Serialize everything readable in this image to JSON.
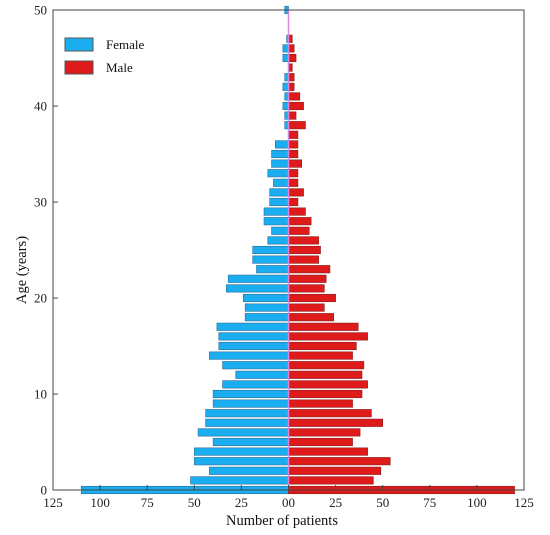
{
  "chart_data": {
    "type": "bar",
    "orientation": "horizontal-population-pyramid",
    "xlabel": "Number of patients",
    "ylabel": "Age (years)",
    "xlim": [
      -125,
      125
    ],
    "ylim": [
      0,
      50
    ],
    "xticks": [
      -125,
      -100,
      -75,
      -50,
      -25,
      0,
      25,
      50,
      75,
      100,
      125
    ],
    "xtick_labels": [
      "125",
      "100",
      "75",
      "50",
      "25",
      "00",
      "25",
      "50",
      "75",
      "100",
      "125"
    ],
    "yticks": [
      0,
      10,
      20,
      30,
      40,
      50
    ],
    "legend_position": "top-left",
    "ages": [
      0,
      1,
      2,
      3,
      4,
      5,
      6,
      7,
      8,
      9,
      10,
      11,
      12,
      13,
      14,
      15,
      16,
      17,
      18,
      19,
      20,
      21,
      22,
      23,
      24,
      25,
      26,
      27,
      28,
      29,
      30,
      31,
      32,
      33,
      34,
      35,
      36,
      37,
      38,
      39,
      40,
      41,
      42,
      43,
      44,
      45,
      46,
      47,
      48,
      49,
      50
    ],
    "series": [
      {
        "name": "Female",
        "color": "#1aaef0",
        "values": [
          110,
          52,
          42,
          50,
          50,
          40,
          48,
          44,
          44,
          40,
          40,
          35,
          28,
          35,
          42,
          37,
          37,
          38,
          23,
          23,
          24,
          33,
          32,
          17,
          19,
          19,
          11,
          9,
          13,
          13,
          10,
          10,
          8,
          11,
          9,
          9,
          7,
          0,
          2,
          2,
          3,
          2,
          3,
          2,
          0,
          3,
          3,
          1,
          0,
          0,
          2
        ]
      },
      {
        "name": "Male",
        "color": "#de1a1a",
        "values": [
          120,
          45,
          49,
          54,
          42,
          34,
          38,
          50,
          44,
          34,
          39,
          42,
          39,
          40,
          34,
          36,
          42,
          37,
          24,
          19,
          25,
          19,
          20,
          22,
          16,
          17,
          16,
          11,
          12,
          9,
          5,
          8,
          5,
          5,
          7,
          5,
          5,
          5,
          9,
          4,
          8,
          6,
          3,
          3,
          2,
          4,
          3,
          2,
          0,
          0,
          0
        ]
      }
    ]
  }
}
